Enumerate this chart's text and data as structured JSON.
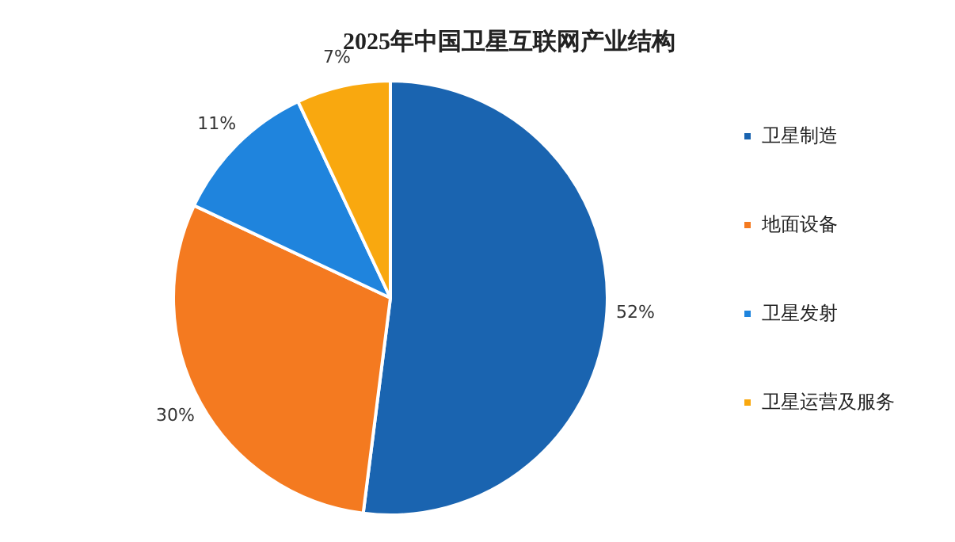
{
  "chart_data": {
    "type": "pie",
    "title": "2025年中国卫星互联网产业结构",
    "categories": [
      "卫星制造",
      "地面设备",
      "卫星发射",
      "卫星运营及服务"
    ],
    "values": [
      52,
      30,
      11,
      7
    ],
    "colors": [
      "#1a64b0",
      "#f47a20",
      "#1f84dd",
      "#f9a80f"
    ],
    "value_labels": [
      "52%",
      "30%",
      "11%",
      "7%"
    ],
    "legend": "right"
  }
}
